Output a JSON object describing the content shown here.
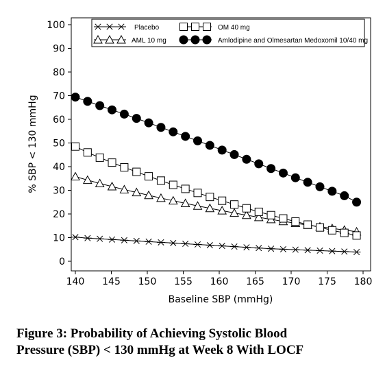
{
  "chart_data": {
    "type": "line",
    "title": "",
    "xlabel": "Baseline SBP (mmHg)",
    "ylabel": "% SBP < 130 mmHg",
    "xlim": [
      140,
      180
    ],
    "ylim": [
      0,
      100
    ],
    "x_ticks": [
      "140",
      "145",
      "150",
      "155",
      "160",
      "165",
      "170",
      "175",
      "180"
    ],
    "y_ticks": [
      "0",
      "10",
      "20",
      "30",
      "40",
      "50",
      "60",
      "70",
      "80",
      "90",
      "100"
    ],
    "grid": false,
    "legend_position": "top",
    "x": [
      140,
      141.7,
      143.4,
      145.1,
      146.8,
      148.5,
      150.2,
      151.9,
      153.6,
      155.3,
      157,
      158.7,
      160.4,
      162.1,
      163.8,
      165.5,
      167.2,
      168.9,
      170.6,
      172.3,
      174,
      175.7,
      177.4,
      179.1
    ],
    "series": [
      {
        "name": "Placebo",
        "marker": "star",
        "color": "#000000",
        "values": [
          10.2,
          9.8,
          9.5,
          9.2,
          8.9,
          8.6,
          8.3,
          8.0,
          7.7,
          7.4,
          7.1,
          6.8,
          6.5,
          6.2,
          5.9,
          5.6,
          5.3,
          5.1,
          4.9,
          4.7,
          4.5,
          4.3,
          4.1,
          3.9
        ]
      },
      {
        "name": "OM 40 mg",
        "marker": "open-square",
        "color": "#000000",
        "values": [
          48.5,
          46.0,
          43.8,
          41.7,
          39.7,
          37.8,
          35.9,
          34.1,
          32.3,
          30.6,
          28.9,
          27.2,
          25.6,
          24.0,
          22.4,
          20.9,
          19.5,
          18.1,
          16.8,
          15.5,
          14.3,
          13.1,
          12.0,
          10.9
        ]
      },
      {
        "name": "AML 10 mg",
        "marker": "open-triangle",
        "color": "#000000",
        "values": [
          35.8,
          34.3,
          32.9,
          31.6,
          30.3,
          29.1,
          27.9,
          26.7,
          25.6,
          24.5,
          23.4,
          22.4,
          21.4,
          20.4,
          19.5,
          18.6,
          17.7,
          16.9,
          16.1,
          15.3,
          14.6,
          13.9,
          13.2,
          12.5
        ]
      },
      {
        "name": "Amlodipine and Olmesartan Medoxomil 10/40 mg",
        "marker": "filled-circle",
        "color": "#000000",
        "values": [
          69.4,
          67.6,
          65.8,
          64.0,
          62.2,
          60.4,
          58.5,
          56.6,
          54.7,
          52.8,
          50.9,
          49.0,
          47.0,
          45.1,
          43.1,
          41.2,
          39.2,
          37.3,
          35.3,
          33.4,
          31.5,
          29.6,
          27.7,
          25.0
        ]
      }
    ]
  },
  "caption": {
    "line1": "Figure 3: Probability of Achieving Systolic Blood",
    "line2": "Pressure (SBP) < 130 mmHg at Week 8 With LOCF"
  }
}
